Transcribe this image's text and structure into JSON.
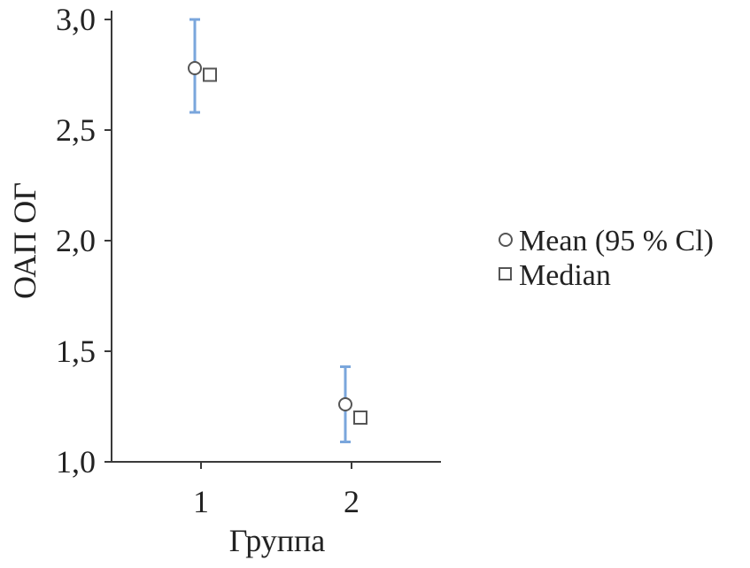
{
  "chart_data": {
    "type": "scatter",
    "xlabel": "Группа",
    "ylabel": "ОАП ОГ",
    "categories": [
      "1",
      "2"
    ],
    "y_ticks": [
      "1,0",
      "1,5",
      "2,0",
      "2,5",
      "3,0"
    ],
    "y_tick_values": [
      1.0,
      1.5,
      2.0,
      2.5,
      3.0
    ],
    "ylim": [
      1.0,
      3.05
    ],
    "grid": false,
    "legend_position": "right",
    "series": [
      {
        "name": "Mean (95 % Cl)",
        "marker": "circle",
        "values": [
          2.78,
          1.26
        ],
        "ci_low": [
          2.58,
          1.09
        ],
        "ci_high": [
          3.0,
          1.43
        ]
      },
      {
        "name": "Median",
        "marker": "square",
        "values": [
          2.75,
          1.2
        ]
      }
    ],
    "colors": {
      "errorbar": "#7aa6dc",
      "marker_stroke": "#555555",
      "axis": "#3a3a3a"
    }
  }
}
